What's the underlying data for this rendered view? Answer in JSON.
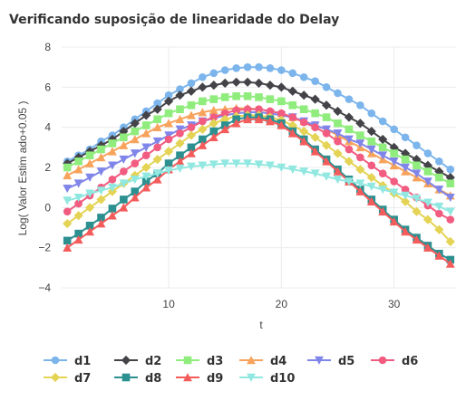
{
  "chart_data": {
    "type": "line",
    "title": "Verificando suposição de linearidade do Delay",
    "xlabel": "t",
    "ylabel": "Log( Valor Estim ado+0.05 )",
    "xlim": [
      0.5,
      35.5
    ],
    "ylim": [
      -4,
      8
    ],
    "x_ticks": [
      "10",
      "20",
      "30"
    ],
    "y_ticks": [
      "−4",
      "−2",
      "0",
      "2",
      "4",
      "6",
      "8"
    ],
    "grid": true,
    "legend_position": "bottom",
    "x": [
      1,
      2,
      3,
      4,
      5,
      6,
      7,
      8,
      9,
      10,
      11,
      12,
      13,
      14,
      15,
      16,
      17,
      18,
      19,
      20,
      21,
      22,
      23,
      24,
      25,
      26,
      27,
      28,
      29,
      30,
      31,
      32,
      33,
      34,
      35
    ],
    "series": [
      {
        "name": "d1",
        "color": "#7cb5ec",
        "marker": "circle",
        "values": [
          2.3,
          2.6,
          2.9,
          3.3,
          3.6,
          4.0,
          4.4,
          4.8,
          5.2,
          5.6,
          5.9,
          6.2,
          6.5,
          6.7,
          6.85,
          6.95,
          7.0,
          7.0,
          6.95,
          6.85,
          6.7,
          6.5,
          6.3,
          6.0,
          5.7,
          5.4,
          5.1,
          4.7,
          4.3,
          3.9,
          3.5,
          3.1,
          2.7,
          2.3,
          1.9
        ]
      },
      {
        "name": "d2",
        "color": "#434348",
        "marker": "diamond",
        "values": [
          2.2,
          2.5,
          2.8,
          3.1,
          3.4,
          3.8,
          4.2,
          4.6,
          4.9,
          5.3,
          5.6,
          5.8,
          6.0,
          6.1,
          6.2,
          6.25,
          6.25,
          6.2,
          6.1,
          6.0,
          5.8,
          5.6,
          5.4,
          5.1,
          4.8,
          4.5,
          4.2,
          3.8,
          3.4,
          3.0,
          2.7,
          2.4,
          2.1,
          1.8,
          1.5
        ]
      },
      {
        "name": "d3",
        "color": "#90ed7d",
        "marker": "square",
        "values": [
          2.0,
          2.3,
          2.6,
          2.9,
          3.2,
          3.5,
          3.8,
          4.1,
          4.4,
          4.7,
          4.9,
          5.1,
          5.3,
          5.4,
          5.5,
          5.55,
          5.55,
          5.5,
          5.4,
          5.3,
          5.1,
          4.9,
          4.7,
          4.5,
          4.2,
          3.9,
          3.6,
          3.3,
          3.0,
          2.7,
          2.4,
          2.1,
          1.8,
          1.5,
          1.2
        ]
      },
      {
        "name": "d4",
        "color": "#f7a35c",
        "marker": "triangle",
        "values": [
          1.6,
          1.9,
          2.2,
          2.5,
          2.8,
          3.1,
          3.4,
          3.7,
          4.0,
          4.2,
          4.4,
          4.6,
          4.75,
          4.85,
          4.9,
          4.95,
          4.95,
          4.9,
          4.8,
          4.7,
          4.5,
          4.3,
          4.1,
          3.9,
          3.6,
          3.3,
          3.0,
          2.7,
          2.4,
          2.1,
          1.8,
          1.5,
          1.2,
          0.9,
          0.6
        ]
      },
      {
        "name": "d5",
        "color": "#8085e9",
        "marker": "triangle-down",
        "values": [
          0.95,
          1.2,
          1.5,
          1.8,
          2.1,
          2.4,
          2.7,
          3.0,
          3.3,
          3.6,
          3.9,
          4.1,
          4.3,
          4.45,
          4.6,
          4.7,
          4.75,
          4.75,
          4.7,
          4.6,
          4.5,
          4.3,
          4.1,
          3.9,
          3.7,
          3.4,
          3.2,
          2.9,
          2.6,
          2.3,
          2.0,
          1.7,
          1.3,
          0.9,
          0.5
        ]
      },
      {
        "name": "d6",
        "color": "#f15c80",
        "marker": "circle",
        "values": [
          -0.2,
          0.2,
          0.6,
          1.0,
          1.4,
          1.8,
          2.2,
          2.6,
          3.0,
          3.4,
          3.7,
          4.0,
          4.3,
          4.5,
          4.7,
          4.85,
          4.9,
          4.9,
          4.8,
          4.7,
          4.5,
          4.25,
          4.0,
          3.7,
          3.3,
          2.9,
          2.5,
          2.1,
          1.7,
          1.3,
          0.9,
          0.5,
          0.1,
          -0.3,
          -0.6
        ]
      },
      {
        "name": "d7",
        "color": "#e4d354",
        "marker": "diamond",
        "values": [
          -0.8,
          -0.4,
          0.0,
          0.4,
          0.8,
          1.2,
          1.6,
          2.0,
          2.4,
          2.8,
          3.2,
          3.6,
          3.9,
          4.2,
          4.4,
          4.55,
          4.6,
          4.6,
          4.5,
          4.35,
          4.1,
          3.8,
          3.5,
          3.1,
          2.7,
          2.3,
          1.9,
          1.5,
          1.1,
          0.7,
          0.3,
          -0.2,
          -0.6,
          -1.1,
          -1.7
        ]
      },
      {
        "name": "d8",
        "color": "#2b908f",
        "marker": "square",
        "values": [
          -1.65,
          -1.3,
          -0.9,
          -0.5,
          -0.05,
          0.4,
          0.8,
          1.3,
          1.7,
          2.2,
          2.6,
          3.0,
          3.4,
          3.8,
          4.1,
          4.4,
          4.5,
          4.5,
          4.4,
          4.2,
          3.8,
          3.4,
          2.9,
          2.4,
          1.9,
          1.4,
          0.9,
          0.4,
          -0.1,
          -0.6,
          -1.1,
          -1.5,
          -1.9,
          -2.3,
          -2.6
        ]
      },
      {
        "name": "d9",
        "color": "#f45b5b",
        "marker": "triangle",
        "values": [
          -2.0,
          -1.6,
          -1.2,
          -0.8,
          -0.4,
          0.0,
          0.5,
          1.0,
          1.4,
          1.9,
          2.3,
          2.7,
          3.1,
          3.5,
          3.9,
          4.2,
          4.4,
          4.4,
          4.3,
          4.1,
          3.7,
          3.3,
          2.8,
          2.3,
          1.8,
          1.3,
          0.8,
          0.3,
          -0.2,
          -0.7,
          -1.2,
          -1.6,
          -2.0,
          -2.4,
          -2.8
        ]
      },
      {
        "name": "d10",
        "color": "#91e8e1",
        "marker": "triangle-down",
        "values": [
          0.35,
          0.5,
          0.7,
          0.85,
          1.0,
          1.2,
          1.4,
          1.55,
          1.7,
          1.85,
          1.95,
          2.05,
          2.1,
          2.15,
          2.2,
          2.2,
          2.2,
          2.15,
          2.1,
          2.0,
          1.9,
          1.8,
          1.7,
          1.55,
          1.4,
          1.3,
          1.2,
          1.05,
          0.9,
          0.75,
          0.6,
          0.45,
          0.25,
          0.05,
          -0.2
        ]
      }
    ]
  }
}
